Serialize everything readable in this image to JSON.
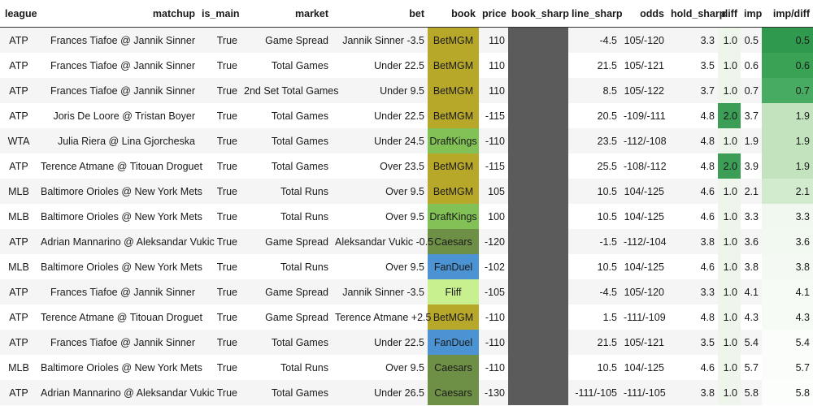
{
  "columns": [
    "league",
    "matchup",
    "is_main",
    "market",
    "bet",
    "book",
    "price",
    "book_sharp",
    "line_sharp",
    "odds",
    "hold_sharp",
    "diff",
    "imp",
    "imp/diff"
  ],
  "book_colors": {
    "BetMGM": "#b8a82a",
    "DraftKings": "#82c156",
    "Caesars": "#6e8f46",
    "FanDuel": "#4c93d3",
    "Fliff": "#c9f08f"
  },
  "rows": [
    {
      "league": "ATP",
      "matchup": "Frances Tiafoe @ Jannik Sinner",
      "is_main": "True",
      "market": "Game Spread",
      "bet": "Jannik Sinner -3.5",
      "book": "BetMGM",
      "price": "110",
      "book_sharp": "",
      "line_sharp": "-4.5",
      "odds": "105/-120",
      "hold_sharp": "3.3",
      "diff": "1.0",
      "imp": "0.5",
      "ratio": "0.5",
      "diff_color": "#eef6ec",
      "ratio_color": "#2f9a4e"
    },
    {
      "league": "ATP",
      "matchup": "Frances Tiafoe @ Jannik Sinner",
      "is_main": "True",
      "market": "Total Games",
      "bet": "Under 22.5",
      "book": "BetMGM",
      "price": "110",
      "book_sharp": "",
      "line_sharp": "21.5",
      "odds": "105/-121",
      "hold_sharp": "3.5",
      "diff": "1.0",
      "imp": "0.6",
      "ratio": "0.6",
      "diff_color": "#eef6ec",
      "ratio_color": "#3aa255"
    },
    {
      "league": "ATP",
      "matchup": "Frances Tiafoe @ Jannik Sinner",
      "is_main": "True",
      "market": "2nd Set Total Games",
      "bet": "Under 9.5",
      "book": "BetMGM",
      "price": "110",
      "book_sharp": "",
      "line_sharp": "8.5",
      "odds": "105/-122",
      "hold_sharp": "3.7",
      "diff": "1.0",
      "imp": "0.7",
      "ratio": "0.7",
      "diff_color": "#eef6ec",
      "ratio_color": "#48ab62"
    },
    {
      "league": "ATP",
      "matchup": "Joris De Loore @ Tristan Boyer",
      "is_main": "True",
      "market": "Total Games",
      "bet": "Under 22.5",
      "book": "BetMGM",
      "price": "-115",
      "book_sharp": "",
      "line_sharp": "20.5",
      "odds": "-109/-111",
      "hold_sharp": "4.8",
      "diff": "2.0",
      "imp": "3.7",
      "ratio": "1.9",
      "diff_color": "#3b9d56",
      "ratio_color": "#c3e3bf"
    },
    {
      "league": "WTA",
      "matchup": "Julia Riera @ Lina Gjorcheska",
      "is_main": "True",
      "market": "Total Games",
      "bet": "Under 24.5",
      "book": "DraftKings",
      "price": "-110",
      "book_sharp": "",
      "line_sharp": "23.5",
      "odds": "-112/-108",
      "hold_sharp": "4.8",
      "diff": "1.0",
      "imp": "1.9",
      "ratio": "1.9",
      "diff_color": "#eef6ec",
      "ratio_color": "#c3e3bf"
    },
    {
      "league": "ATP",
      "matchup": "Terence Atmane @ Titouan Droguet",
      "is_main": "True",
      "market": "Total Games",
      "bet": "Over 23.5",
      "book": "BetMGM",
      "price": "-115",
      "book_sharp": "",
      "line_sharp": "25.5",
      "odds": "-108/-112",
      "hold_sharp": "4.8",
      "diff": "2.0",
      "imp": "3.9",
      "ratio": "1.9",
      "diff_color": "#3b9d56",
      "ratio_color": "#c3e3bf"
    },
    {
      "league": "MLB",
      "matchup": "Baltimore Orioles @ New York Mets",
      "is_main": "True",
      "market": "Total Runs",
      "bet": "Over 9.5",
      "book": "BetMGM",
      "price": "105",
      "book_sharp": "",
      "line_sharp": "10.5",
      "odds": "104/-125",
      "hold_sharp": "4.6",
      "diff": "1.0",
      "imp": "2.1",
      "ratio": "2.1",
      "diff_color": "#eef6ec",
      "ratio_color": "#d2ebcf"
    },
    {
      "league": "MLB",
      "matchup": "Baltimore Orioles @ New York Mets",
      "is_main": "True",
      "market": "Total Runs",
      "bet": "Over 9.5",
      "book": "DraftKings",
      "price": "100",
      "book_sharp": "",
      "line_sharp": "10.5",
      "odds": "104/-125",
      "hold_sharp": "4.6",
      "diff": "1.0",
      "imp": "3.3",
      "ratio": "3.3",
      "diff_color": "#eef6ec",
      "ratio_color": "#f0f8ef"
    },
    {
      "league": "ATP",
      "matchup": "Adrian Mannarino @ Aleksandar Vukic",
      "is_main": "True",
      "market": "Game Spread",
      "bet": "Aleksandar Vukic -0.5",
      "book": "Caesars",
      "price": "-120",
      "book_sharp": "",
      "line_sharp": "-1.5",
      "odds": "-112/-104",
      "hold_sharp": "3.8",
      "diff": "1.0",
      "imp": "3.6",
      "ratio": "3.6",
      "diff_color": "#eef6ec",
      "ratio_color": "#f2f9f1"
    },
    {
      "league": "MLB",
      "matchup": "Baltimore Orioles @ New York Mets",
      "is_main": "True",
      "market": "Total Runs",
      "bet": "Over 9.5",
      "book": "FanDuel",
      "price": "-102",
      "book_sharp": "",
      "line_sharp": "10.5",
      "odds": "104/-125",
      "hold_sharp": "4.6",
      "diff": "1.0",
      "imp": "3.8",
      "ratio": "3.8",
      "diff_color": "#eef6ec",
      "ratio_color": "#f4faf3"
    },
    {
      "league": "ATP",
      "matchup": "Frances Tiafoe @ Jannik Sinner",
      "is_main": "True",
      "market": "Game Spread",
      "bet": "Jannik Sinner -3.5",
      "book": "Fliff",
      "price": "-105",
      "book_sharp": "",
      "line_sharp": "-4.5",
      "odds": "105/-120",
      "hold_sharp": "3.3",
      "diff": "1.0",
      "imp": "4.1",
      "ratio": "4.1",
      "diff_color": "#eef6ec",
      "ratio_color": "#f6fbf5"
    },
    {
      "league": "ATP",
      "matchup": "Terence Atmane @ Titouan Droguet",
      "is_main": "True",
      "market": "Game Spread",
      "bet": "Terence Atmane +2.5",
      "book": "BetMGM",
      "price": "-110",
      "book_sharp": "",
      "line_sharp": "1.5",
      "odds": "-111/-109",
      "hold_sharp": "4.8",
      "diff": "1.0",
      "imp": "4.3",
      "ratio": "4.3",
      "diff_color": "#eef6ec",
      "ratio_color": "#f7fbf6"
    },
    {
      "league": "ATP",
      "matchup": "Frances Tiafoe @ Jannik Sinner",
      "is_main": "True",
      "market": "Total Games",
      "bet": "Under 22.5",
      "book": "FanDuel",
      "price": "-110",
      "book_sharp": "",
      "line_sharp": "21.5",
      "odds": "105/-121",
      "hold_sharp": "3.5",
      "diff": "1.0",
      "imp": "5.4",
      "ratio": "5.4",
      "diff_color": "#eef6ec",
      "ratio_color": "#fafdf9"
    },
    {
      "league": "MLB",
      "matchup": "Baltimore Orioles @ New York Mets",
      "is_main": "True",
      "market": "Total Runs",
      "bet": "Over 9.5",
      "book": "Caesars",
      "price": "-110",
      "book_sharp": "",
      "line_sharp": "10.5",
      "odds": "104/-125",
      "hold_sharp": "4.6",
      "diff": "1.0",
      "imp": "5.7",
      "ratio": "5.7",
      "diff_color": "#eef6ec",
      "ratio_color": "#fbfdfa"
    },
    {
      "league": "ATP",
      "matchup": "Adrian Mannarino @ Aleksandar Vukic",
      "is_main": "True",
      "market": "Total Games",
      "bet": "Under 26.5",
      "book": "Caesars",
      "price": "-130",
      "book_sharp": "",
      "line_sharp": "-111/-105",
      "odds": "-111/-105",
      "hold_sharp": "3.8",
      "diff": "1.0",
      "imp": "5.8",
      "ratio": "5.8",
      "diff_color": "#eef6ec",
      "ratio_color": "#fcfefb"
    }
  ]
}
